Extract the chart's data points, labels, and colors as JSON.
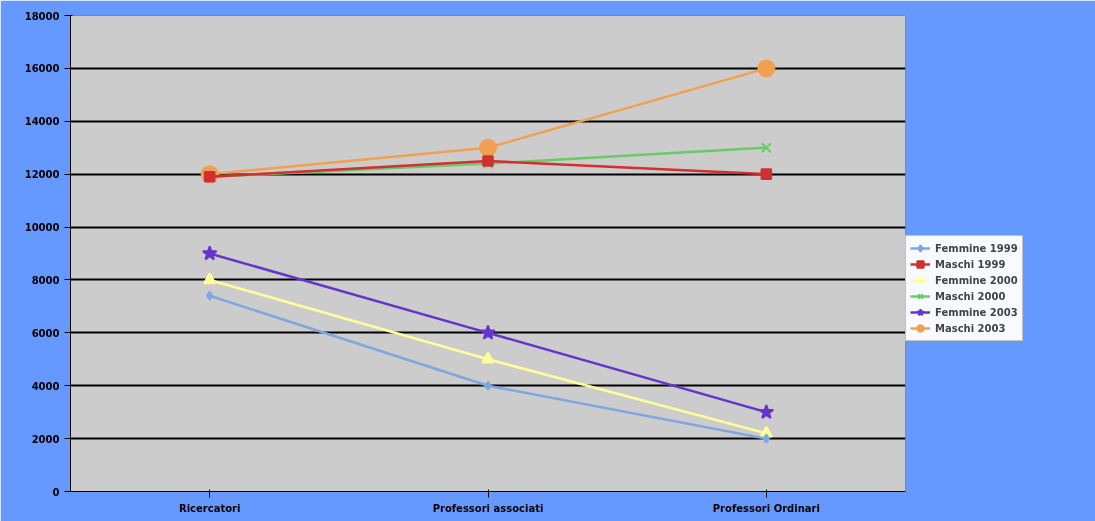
{
  "chart_data": {
    "type": "line",
    "categories": [
      "Ricercatori",
      "Professori associati",
      "Professori Ordinari"
    ],
    "ylim": [
      0,
      18000
    ],
    "yticks": [
      0,
      2000,
      4000,
      6000,
      8000,
      10000,
      12000,
      14000,
      16000,
      18000
    ],
    "grid": "y",
    "legend": "right",
    "series": [
      {
        "name": "Femmine 1999",
        "color": "#7ea6e0",
        "marker": "diamond",
        "values": [
          7400,
          4000,
          2000
        ]
      },
      {
        "name": "Maschi 1999",
        "color": "#d03030",
        "marker": "square",
        "values": [
          11900,
          12500,
          12000
        ]
      },
      {
        "name": "Femmine 2000",
        "color": "#ffff99",
        "marker": "triangle",
        "values": [
          8000,
          5000,
          2200
        ]
      },
      {
        "name": "Maschi 2000",
        "color": "#66cc66",
        "marker": "cross",
        "values": [
          11900,
          12400,
          13000
        ]
      },
      {
        "name": "Femmine 2003",
        "color": "#6633cc",
        "marker": "star",
        "values": [
          9000,
          6000,
          3000
        ]
      },
      {
        "name": "Maschi 2003",
        "color": "#f0a050",
        "marker": "circle",
        "values": [
          12000,
          13000,
          16000
        ]
      }
    ]
  }
}
